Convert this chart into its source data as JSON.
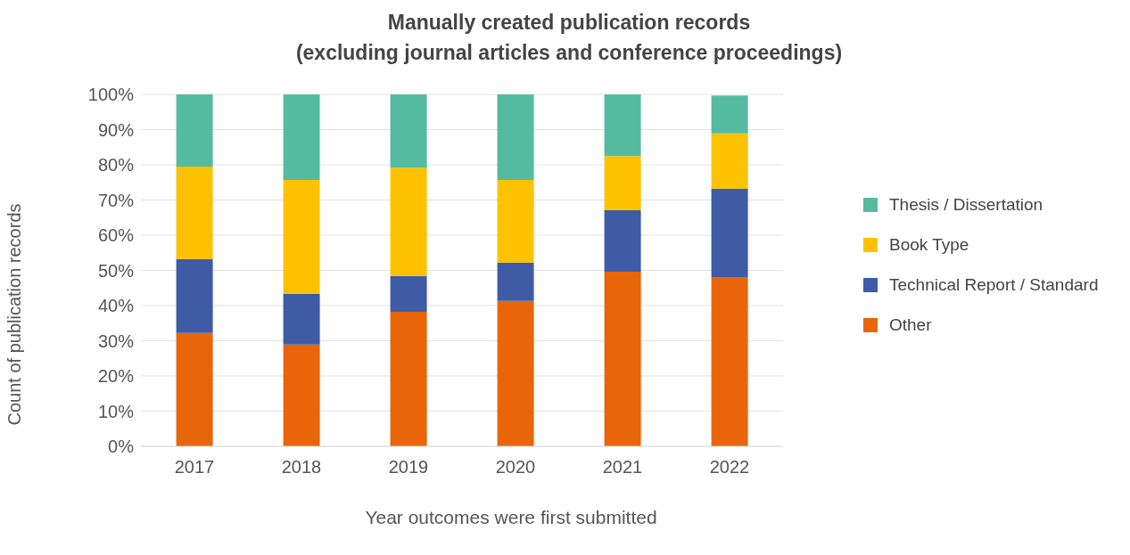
{
  "chart_data": {
    "type": "bar",
    "title": "Manually created publication records\n(excluding journal articles and conference proceedings)",
    "xlabel": "Year outcomes were first submitted",
    "ylabel": "Count of publication records",
    "categories": [
      "2017",
      "2018",
      "2019",
      "2020",
      "2021",
      "2022"
    ],
    "series": [
      {
        "name": "Other",
        "color": "#e8650a",
        "values": [
          32.2,
          28.9,
          38.2,
          41.3,
          49.6,
          48.1
        ]
      },
      {
        "name": "Technical Report / Standard",
        "color": "#3f5ba6",
        "values": [
          21,
          14.4,
          10.2,
          10.9,
          17.5,
          25.1
        ]
      },
      {
        "name": "Book Type",
        "color": "#fcc200",
        "values": [
          26.3,
          32.4,
          30.8,
          23.5,
          15.4,
          15.7
        ]
      },
      {
        "name": "Thesis / Dissertation",
        "color": "#55bba0",
        "values": [
          20.5,
          24.3,
          20.8,
          24.3,
          17.5,
          10.8
        ]
      }
    ],
    "stacked": true,
    "ylim": [
      0,
      100
    ],
    "yticks": [
      {
        "value": 0,
        "label": "0%"
      },
      {
        "value": 10,
        "label": "10%"
      },
      {
        "value": 20,
        "label": "20%"
      },
      {
        "value": 30,
        "label": "30%"
      },
      {
        "value": 40,
        "label": "40%"
      },
      {
        "value": 50,
        "label": "50%"
      },
      {
        "value": 60,
        "label": "60%"
      },
      {
        "value": 70,
        "label": "70%"
      },
      {
        "value": 80,
        "label": "80%"
      },
      {
        "value": 90,
        "label": "90%"
      },
      {
        "value": 100,
        "label": "100%"
      }
    ],
    "grid": "y",
    "legend": "right"
  }
}
